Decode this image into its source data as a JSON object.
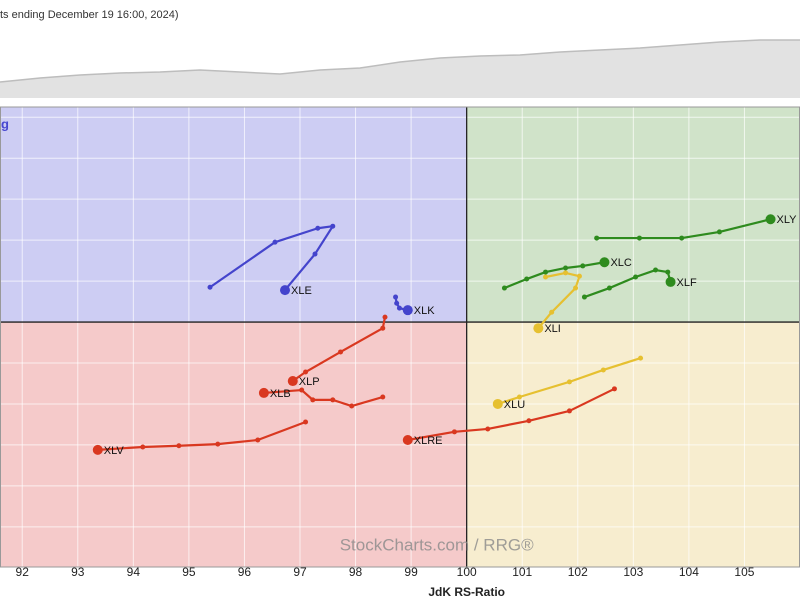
{
  "chart_data": [
    {
      "type": "rrg",
      "subtitle": "ts ending December 19 16:00, 2024)",
      "quadrant_label": "g",
      "watermark": "StockCharts.com / RRG®",
      "x_label": "JdK RS-Ratio",
      "center": 100,
      "quadrant_colors": {
        "improving": "#cdcdf3",
        "leading": "#d0e3c9",
        "weakening": "#f7edcf",
        "lagging": "#f5caca"
      },
      "quadrant_label_color": "#4848d0",
      "grid": true,
      "xlim": [
        91.6,
        106
      ],
      "xticks": [
        92,
        93,
        94,
        95,
        96,
        97,
        98,
        99,
        100,
        101,
        102,
        103,
        104,
        105
      ],
      "ylim": [
        94.02,
        105.25
      ],
      "yticks": [
        95,
        96,
        97,
        98,
        99,
        100,
        101,
        102,
        103,
        104,
        105
      ],
      "series": [
        {
          "name": "XLE",
          "color": "#4444cc",
          "x": [
            95.38,
            96.55,
            97.32,
            97.59,
            97.27,
            96.73
          ],
          "values": [
            100.85,
            101.95,
            102.29,
            102.34,
            101.66,
            100.78
          ]
        },
        {
          "name": "XLK",
          "color": "#4444cc",
          "x": [
            98.72,
            98.74,
            98.79,
            98.94
          ],
          "values": [
            100.61,
            100.46,
            100.34,
            100.29
          ]
        },
        {
          "name": "XLY",
          "color": "#2e8b1e",
          "x": [
            102.34,
            103.11,
            103.87,
            104.55,
            105.47
          ],
          "values": [
            102.05,
            102.05,
            102.05,
            102.2,
            102.51
          ]
        },
        {
          "name": "XLC",
          "color": "#2e8b1e",
          "x": [
            100.68,
            101.08,
            101.42,
            101.78,
            102.09,
            102.48
          ],
          "values": [
            100.83,
            101.05,
            101.22,
            101.32,
            101.37,
            101.46
          ]
        },
        {
          "name": "XLF",
          "color": "#2e8b1e",
          "x": [
            102.12,
            102.57,
            103.04,
            103.4,
            103.62,
            103.67
          ],
          "values": [
            100.61,
            100.83,
            101.1,
            101.27,
            101.22,
            100.98
          ]
        },
        {
          "name": "XLI",
          "color": "#e6c030",
          "x": [
            101.42,
            101.78,
            102.03,
            101.96,
            101.53,
            101.29
          ],
          "values": [
            101.1,
            101.2,
            101.12,
            100.83,
            100.24,
            99.85
          ]
        },
        {
          "name": "XLU",
          "color": "#e6c030",
          "x": [
            103.13,
            102.46,
            101.85,
            100.95,
            100.56
          ],
          "values": [
            99.12,
            98.83,
            98.54,
            98.17,
            98.0
          ]
        },
        {
          "name": "XLRE",
          "color": "#d93820",
          "x": [
            102.66,
            101.85,
            101.12,
            100.38,
            99.78,
            98.94
          ],
          "values": [
            98.37,
            97.83,
            97.59,
            97.39,
            97.32,
            97.12
          ]
        },
        {
          "name": "XLB",
          "color": "#d93820",
          "x": [
            98.49,
            97.93,
            97.59,
            97.23,
            97.03,
            96.35
          ],
          "values": [
            98.17,
            97.95,
            98.1,
            98.1,
            98.34,
            98.27
          ]
        },
        {
          "name": "XLP",
          "color": "#d93820",
          "x": [
            98.53,
            98.49,
            97.73,
            97.1,
            96.87
          ],
          "values": [
            100.12,
            99.85,
            99.27,
            98.78,
            98.56
          ]
        },
        {
          "name": "XLV",
          "color": "#d93820",
          "x": [
            97.1,
            96.24,
            95.52,
            94.82,
            94.17,
            93.36
          ],
          "values": [
            97.56,
            97.12,
            97.02,
            96.98,
            96.95,
            96.88
          ]
        }
      ]
    },
    {
      "type": "area",
      "color": "#e2e2e2",
      "line_color": "#bdbdbd",
      "ylim": [
        0,
        73
      ],
      "values": [
        16,
        20,
        23,
        25,
        26,
        28,
        26,
        24,
        28,
        30,
        36,
        40,
        42,
        43,
        46,
        48,
        50,
        53,
        56,
        58,
        58
      ]
    }
  ]
}
